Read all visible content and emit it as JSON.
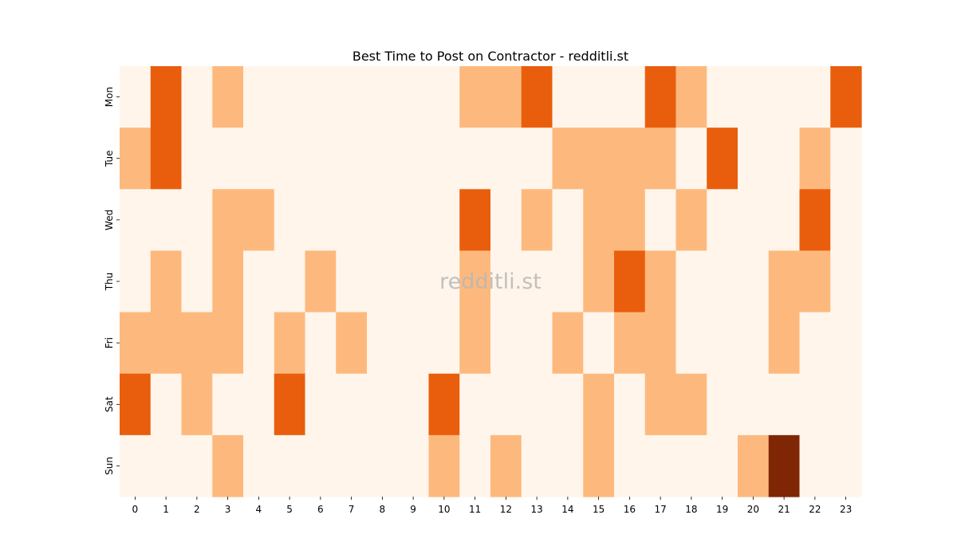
{
  "chart_data": {
    "type": "heatmap",
    "title": "Best Time to Post on Contractor - redditli.st",
    "watermark": "redditli.st",
    "xlabel": "",
    "ylabel": "",
    "x_categories": [
      "0",
      "1",
      "2",
      "3",
      "4",
      "5",
      "6",
      "7",
      "8",
      "9",
      "10",
      "11",
      "12",
      "13",
      "14",
      "15",
      "16",
      "17",
      "18",
      "19",
      "20",
      "21",
      "22",
      "23"
    ],
    "y_categories": [
      "Mon",
      "Tue",
      "Wed",
      "Thu",
      "Fri",
      "Sat",
      "Sun"
    ],
    "colorbar": false,
    "colors": {
      "0": "#fff5eb",
      "1": "#fdb97d",
      "2": "#e95e0d",
      "3": "#7f2704"
    },
    "values": [
      [
        0,
        2,
        0,
        1,
        0,
        0,
        0,
        0,
        0,
        0,
        0,
        1,
        1,
        2,
        0,
        0,
        0,
        2,
        1,
        0,
        0,
        0,
        0,
        2
      ],
      [
        1,
        2,
        0,
        0,
        0,
        0,
        0,
        0,
        0,
        0,
        0,
        0,
        0,
        0,
        1,
        1,
        1,
        1,
        0,
        2,
        0,
        0,
        1,
        0
      ],
      [
        0,
        0,
        0,
        1,
        1,
        0,
        0,
        0,
        0,
        0,
        0,
        2,
        0,
        1,
        0,
        1,
        1,
        0,
        1,
        0,
        0,
        0,
        2,
        0
      ],
      [
        0,
        1,
        0,
        1,
        0,
        0,
        1,
        0,
        0,
        0,
        0,
        1,
        0,
        0,
        0,
        1,
        2,
        1,
        0,
        0,
        0,
        1,
        1,
        0
      ],
      [
        1,
        1,
        1,
        1,
        0,
        1,
        0,
        1,
        0,
        0,
        0,
        1,
        0,
        0,
        1,
        0,
        1,
        1,
        0,
        0,
        0,
        1,
        0,
        0
      ],
      [
        2,
        0,
        1,
        0,
        0,
        2,
        0,
        0,
        0,
        0,
        2,
        0,
        0,
        0,
        0,
        1,
        0,
        1,
        1,
        0,
        0,
        0,
        0,
        0
      ],
      [
        0,
        0,
        0,
        1,
        0,
        0,
        0,
        0,
        0,
        0,
        1,
        0,
        1,
        0,
        0,
        1,
        0,
        0,
        0,
        0,
        1,
        3,
        0,
        0
      ]
    ]
  }
}
